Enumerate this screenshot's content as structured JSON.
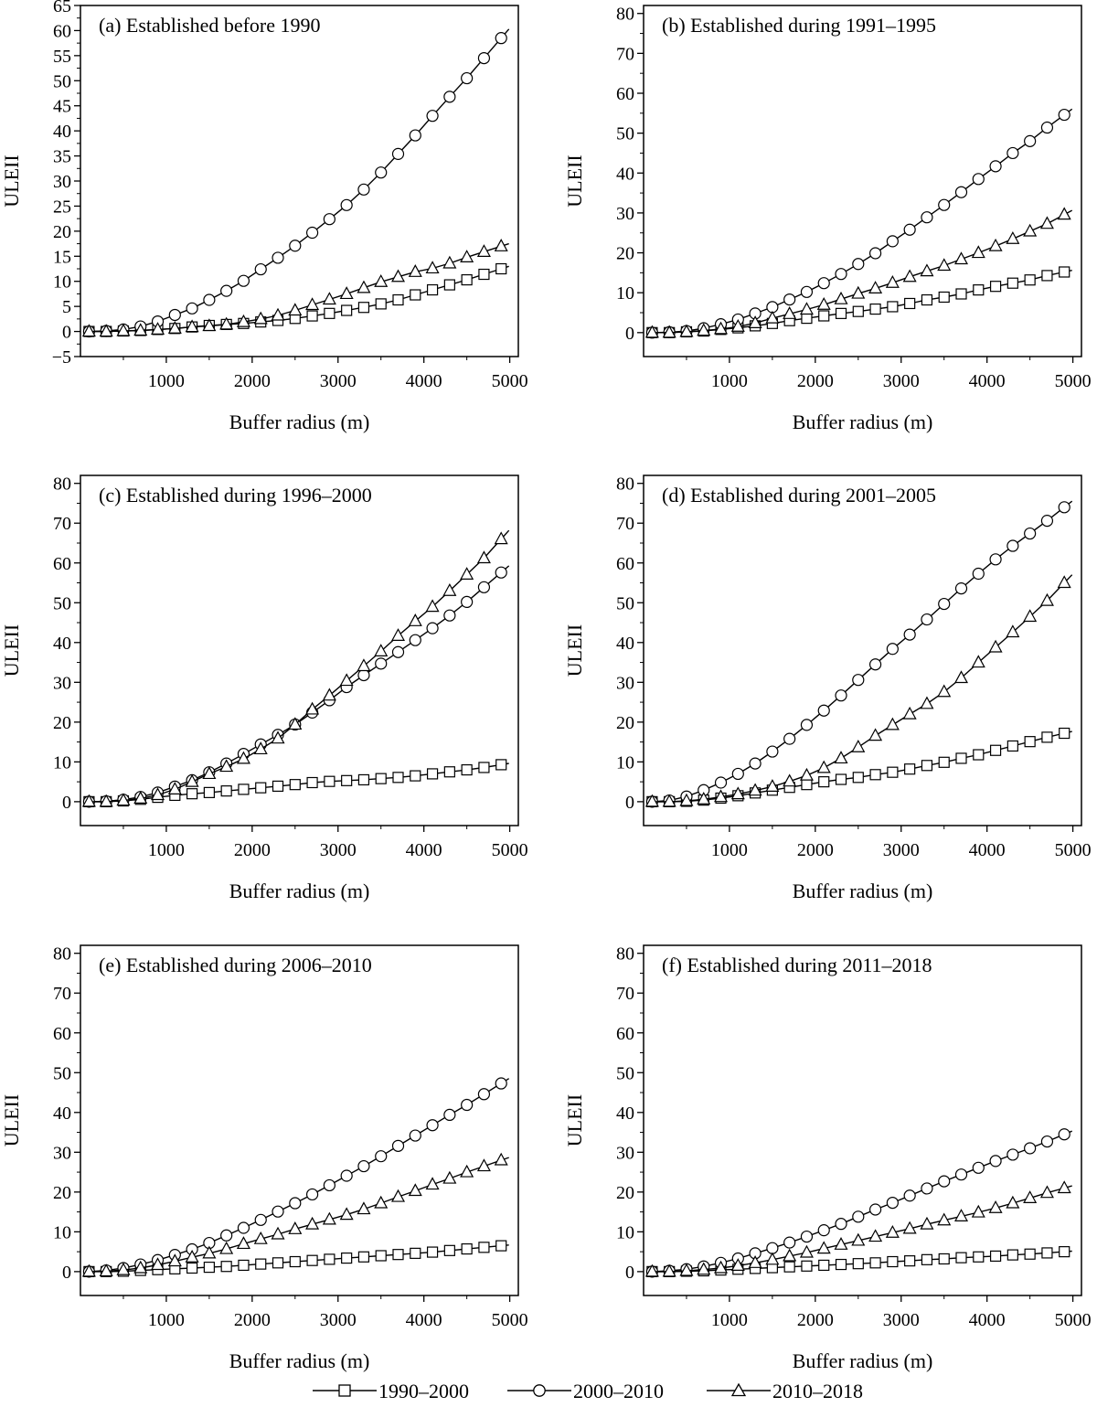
{
  "legend": {
    "items": [
      {
        "label": "1990–2000",
        "marker": "square"
      },
      {
        "label": "2000–2010",
        "marker": "circle"
      },
      {
        "label": "2010–2018",
        "marker": "triangle"
      }
    ]
  },
  "chart_data": [
    {
      "type": "line",
      "title": "(a) Established before 1990",
      "xlabel": "Buffer radius (m)",
      "ylabel": "ULEII",
      "xlim": [
        0,
        5100
      ],
      "ylim": [
        -5,
        65
      ],
      "yticks": [
        -5,
        0,
        5,
        10,
        15,
        20,
        25,
        30,
        35,
        40,
        45,
        50,
        55,
        60,
        65
      ],
      "xticks": [
        1000,
        2000,
        3000,
        4000,
        5000
      ],
      "ytick_labels": [
        "−5",
        "0",
        "5",
        "10",
        "15",
        "20",
        "25",
        "30",
        "35",
        "40",
        "45",
        "50",
        "55",
        "60",
        "65"
      ],
      "xtick_labels": [
        "1000",
        "2000",
        "3000",
        "4000",
        "5000"
      ],
      "x": [
        100,
        300,
        500,
        700,
        900,
        1100,
        1300,
        1500,
        1700,
        1900,
        2100,
        2300,
        2500,
        2700,
        2900,
        3100,
        3300,
        3500,
        3700,
        3900,
        4100,
        4300,
        4500,
        4700,
        4900
      ],
      "series": [
        {
          "name": "1990–2000",
          "marker": "square",
          "values": [
            0.0,
            0.0,
            0.1,
            0.2,
            0.4,
            0.6,
            0.9,
            1.2,
            1.4,
            1.6,
            1.9,
            2.2,
            2.6,
            3.1,
            3.6,
            4.2,
            4.8,
            5.5,
            6.3,
            7.3,
            8.3,
            9.3,
            10.3,
            11.4,
            12.5
          ]
        },
        {
          "name": "2000–2010",
          "marker": "circle",
          "values": [
            0.0,
            0.1,
            0.4,
            1.0,
            2.0,
            3.3,
            4.6,
            6.3,
            8.1,
            10.1,
            12.4,
            14.7,
            17.1,
            19.7,
            22.4,
            25.2,
            28.3,
            31.7,
            35.4,
            39.1,
            43.0,
            46.8,
            50.5,
            54.5,
            58.5
          ]
        },
        {
          "name": "2010–2018",
          "marker": "triangle",
          "values": [
            0.0,
            0.0,
            0.1,
            0.2,
            0.4,
            0.6,
            0.9,
            1.1,
            1.4,
            1.9,
            2.5,
            3.2,
            4.2,
            5.3,
            6.4,
            7.5,
            8.7,
            9.9,
            10.9,
            11.9,
            12.6,
            13.6,
            14.8,
            15.9,
            17.0
          ]
        }
      ]
    },
    {
      "type": "line",
      "title": "(b) Established during 1991–1995",
      "xlabel": "Buffer radius (m)",
      "ylabel": "ULEII",
      "xlim": [
        0,
        5100
      ],
      "ylim": [
        -6,
        82
      ],
      "yticks": [
        0,
        10,
        20,
        30,
        40,
        50,
        60,
        70,
        80
      ],
      "xticks": [
        1000,
        2000,
        3000,
        4000,
        5000
      ],
      "ytick_labels": [
        "0",
        "10",
        "20",
        "30",
        "40",
        "50",
        "60",
        "70",
        "80"
      ],
      "xtick_labels": [
        "1000",
        "2000",
        "3000",
        "4000",
        "5000"
      ],
      "x": [
        100,
        300,
        500,
        700,
        900,
        1100,
        1300,
        1500,
        1700,
        1900,
        2100,
        2300,
        2500,
        2700,
        2900,
        3100,
        3300,
        3500,
        3700,
        3900,
        4100,
        4300,
        4500,
        4700,
        4900
      ],
      "series": [
        {
          "name": "1990–2000",
          "marker": "square",
          "values": [
            0.0,
            0.0,
            0.2,
            0.4,
            0.8,
            1.2,
            1.7,
            2.3,
            3.0,
            3.6,
            4.2,
            4.8,
            5.3,
            5.9,
            6.5,
            7.3,
            8.2,
            8.9,
            9.7,
            10.7,
            11.6,
            12.4,
            13.2,
            14.3,
            15.2
          ]
        },
        {
          "name": "2000–2010",
          "marker": "circle",
          "values": [
            0.0,
            0.1,
            0.4,
            1.1,
            2.1,
            3.3,
            4.8,
            6.4,
            8.3,
            10.2,
            12.4,
            14.7,
            17.2,
            19.9,
            22.9,
            25.8,
            28.9,
            32.0,
            35.2,
            38.5,
            41.7,
            45.0,
            48.0,
            51.4,
            54.6
          ]
        },
        {
          "name": "2010–2018",
          "marker": "triangle",
          "values": [
            0.0,
            0.0,
            0.2,
            0.5,
            0.9,
            1.5,
            2.4,
            3.6,
            4.7,
            5.8,
            7.0,
            8.4,
            9.8,
            11.1,
            12.5,
            14.0,
            15.4,
            16.8,
            18.4,
            20.0,
            21.7,
            23.5,
            25.4,
            27.3,
            29.6
          ]
        }
      ]
    },
    {
      "type": "line",
      "title": "(c) Established during 1996–2000",
      "xlabel": "Buffer radius (m)",
      "ylabel": "ULEII",
      "xlim": [
        0,
        5100
      ],
      "ylim": [
        -6,
        82
      ],
      "yticks": [
        0,
        10,
        20,
        30,
        40,
        50,
        60,
        70,
        80
      ],
      "xticks": [
        1000,
        2000,
        3000,
        4000,
        5000
      ],
      "ytick_labels": [
        "0",
        "10",
        "20",
        "30",
        "40",
        "50",
        "60",
        "70",
        "80"
      ],
      "xtick_labels": [
        "1000",
        "2000",
        "3000",
        "4000",
        "5000"
      ],
      "x": [
        100,
        300,
        500,
        700,
        900,
        1100,
        1300,
        1500,
        1700,
        1900,
        2100,
        2300,
        2500,
        2700,
        2900,
        3100,
        3300,
        3500,
        3700,
        3900,
        4100,
        4300,
        4500,
        4700,
        4900
      ],
      "series": [
        {
          "name": "1990–2000",
          "marker": "square",
          "values": [
            0.0,
            0.0,
            0.2,
            0.6,
            1.1,
            1.6,
            2.0,
            2.3,
            2.7,
            3.1,
            3.5,
            3.9,
            4.3,
            4.8,
            5.1,
            5.3,
            5.5,
            5.8,
            6.1,
            6.5,
            7.0,
            7.5,
            8.0,
            8.6,
            9.3
          ]
        },
        {
          "name": "2000–2010",
          "marker": "circle",
          "values": [
            0.0,
            0.1,
            0.5,
            1.2,
            2.3,
            3.8,
            5.4,
            7.4,
            9.6,
            12.0,
            14.4,
            16.8,
            19.4,
            22.4,
            25.5,
            28.8,
            31.8,
            34.7,
            37.6,
            40.6,
            43.6,
            46.8,
            50.2,
            53.9,
            57.6
          ]
        },
        {
          "name": "2010–2018",
          "marker": "triangle",
          "values": [
            0.0,
            0.0,
            0.3,
            0.8,
            1.7,
            3.1,
            5.0,
            7.0,
            8.8,
            10.8,
            13.2,
            15.9,
            19.4,
            23.2,
            26.7,
            30.4,
            34.1,
            37.8,
            41.7,
            45.4,
            49.0,
            53.0,
            57.1,
            61.2,
            66.0
          ]
        }
      ]
    },
    {
      "type": "line",
      "title": "(d) Established during 2001–2005",
      "xlabel": "Buffer radius (m)",
      "ylabel": "ULEII",
      "xlim": [
        0,
        5100
      ],
      "ylim": [
        -6,
        82
      ],
      "yticks": [
        0,
        10,
        20,
        30,
        40,
        50,
        60,
        70,
        80
      ],
      "xticks": [
        1000,
        2000,
        3000,
        4000,
        5000
      ],
      "ytick_labels": [
        "0",
        "10",
        "20",
        "30",
        "40",
        "50",
        "60",
        "70",
        "80"
      ],
      "xtick_labels": [
        "1000",
        "2000",
        "3000",
        "4000",
        "5000"
      ],
      "x": [
        100,
        300,
        500,
        700,
        900,
        1100,
        1300,
        1500,
        1700,
        1900,
        2100,
        2300,
        2500,
        2700,
        2900,
        3100,
        3300,
        3500,
        3700,
        3900,
        4100,
        4300,
        4500,
        4700,
        4900
      ],
      "series": [
        {
          "name": "1990–2000",
          "marker": "square",
          "values": [
            0.0,
            0.0,
            0.1,
            0.4,
            0.9,
            1.5,
            2.2,
            2.9,
            3.6,
            4.3,
            5.0,
            5.6,
            6.1,
            6.8,
            7.4,
            8.2,
            9.1,
            9.9,
            10.9,
            11.8,
            12.9,
            14.0,
            15.1,
            16.2,
            17.2
          ]
        },
        {
          "name": "2000–2010",
          "marker": "circle",
          "values": [
            0.0,
            0.3,
            1.3,
            2.9,
            4.8,
            7.0,
            9.6,
            12.6,
            15.8,
            19.3,
            22.9,
            26.7,
            30.6,
            34.5,
            38.4,
            42.0,
            45.8,
            49.7,
            53.6,
            57.3,
            60.9,
            64.3,
            67.4,
            70.6,
            74.0
          ]
        },
        {
          "name": "2010–2018",
          "marker": "triangle",
          "values": [
            0.0,
            0.0,
            0.2,
            0.6,
            1.2,
            1.9,
            2.8,
            3.8,
            5.1,
            6.6,
            8.5,
            10.9,
            13.7,
            16.6,
            19.3,
            22.0,
            24.6,
            27.6,
            31.1,
            35.0,
            38.8,
            42.6,
            46.5,
            50.5,
            55.0
          ]
        }
      ]
    },
    {
      "type": "line",
      "title": "(e) Established during 2006–2010",
      "xlabel": "Buffer radius (m)",
      "ylabel": "ULEII",
      "xlim": [
        0,
        5100
      ],
      "ylim": [
        -6,
        82
      ],
      "yticks": [
        0,
        10,
        20,
        30,
        40,
        50,
        60,
        70,
        80
      ],
      "xticks": [
        1000,
        2000,
        3000,
        4000,
        5000
      ],
      "ytick_labels": [
        "0",
        "10",
        "20",
        "30",
        "40",
        "50",
        "60",
        "70",
        "80"
      ],
      "xtick_labels": [
        "1000",
        "2000",
        "3000",
        "4000",
        "5000"
      ],
      "x": [
        100,
        300,
        500,
        700,
        900,
        1100,
        1300,
        1500,
        1700,
        1900,
        2100,
        2300,
        2500,
        2700,
        2900,
        3100,
        3300,
        3500,
        3700,
        3900,
        4100,
        4300,
        4500,
        4700,
        4900
      ],
      "series": [
        {
          "name": "1990–2000",
          "marker": "square",
          "values": [
            0.0,
            0.0,
            0.1,
            0.3,
            0.5,
            0.7,
            0.9,
            1.1,
            1.3,
            1.6,
            1.9,
            2.2,
            2.5,
            2.8,
            3.1,
            3.4,
            3.7,
            4.0,
            4.3,
            4.6,
            4.9,
            5.3,
            5.7,
            6.1,
            6.5
          ]
        },
        {
          "name": "2000–2010",
          "marker": "circle",
          "values": [
            0.0,
            0.3,
            0.9,
            1.8,
            2.9,
            4.2,
            5.6,
            7.2,
            9.1,
            11.0,
            13.0,
            15.1,
            17.2,
            19.4,
            21.7,
            24.1,
            26.5,
            29.0,
            31.6,
            34.2,
            36.8,
            39.4,
            41.9,
            44.6,
            47.3
          ]
        },
        {
          "name": "2010–2018",
          "marker": "triangle",
          "values": [
            0.0,
            0.1,
            0.4,
            0.9,
            1.7,
            2.6,
            3.6,
            4.6,
            5.7,
            7.0,
            8.2,
            9.4,
            10.7,
            11.9,
            13.1,
            14.3,
            15.7,
            17.2,
            18.8,
            20.3,
            21.9,
            23.4,
            25.0,
            26.5,
            28.0
          ]
        }
      ]
    },
    {
      "type": "line",
      "title": "(f) Established during 2011–2018",
      "xlabel": "Buffer radius (m)",
      "ylabel": "ULEII",
      "xlim": [
        0,
        5100
      ],
      "ylim": [
        -6,
        82
      ],
      "yticks": [
        0,
        10,
        20,
        30,
        40,
        50,
        60,
        70,
        80
      ],
      "xticks": [
        1000,
        2000,
        3000,
        4000,
        5000
      ],
      "ytick_labels": [
        "0",
        "10",
        "20",
        "30",
        "40",
        "50",
        "60",
        "70",
        "80"
      ],
      "xtick_labels": [
        "1000",
        "2000",
        "3000",
        "4000",
        "5000"
      ],
      "x": [
        100,
        300,
        500,
        700,
        900,
        1100,
        1300,
        1500,
        1700,
        1900,
        2100,
        2300,
        2500,
        2700,
        2900,
        3100,
        3300,
        3500,
        3700,
        3900,
        4100,
        4300,
        4500,
        4700,
        4900
      ],
      "series": [
        {
          "name": "1990–2000",
          "marker": "square",
          "values": [
            0.0,
            0.0,
            0.1,
            0.2,
            0.4,
            0.6,
            0.8,
            1.0,
            1.2,
            1.4,
            1.6,
            1.8,
            2.0,
            2.2,
            2.5,
            2.7,
            3.0,
            3.2,
            3.5,
            3.7,
            3.9,
            4.2,
            4.4,
            4.7,
            5.0
          ]
        },
        {
          "name": "2000–2010",
          "marker": "circle",
          "values": [
            0.0,
            0.2,
            0.6,
            1.3,
            2.2,
            3.3,
            4.6,
            5.9,
            7.3,
            8.8,
            10.4,
            12.0,
            13.8,
            15.6,
            17.3,
            19.1,
            20.9,
            22.7,
            24.4,
            26.1,
            27.8,
            29.4,
            31.0,
            32.7,
            34.5
          ]
        },
        {
          "name": "2010–2018",
          "marker": "triangle",
          "values": [
            0.0,
            0.0,
            0.2,
            0.5,
            0.9,
            1.5,
            2.2,
            3.0,
            3.9,
            4.8,
            5.8,
            6.8,
            7.8,
            8.8,
            9.8,
            10.8,
            11.9,
            12.9,
            13.9,
            14.9,
            16.0,
            17.2,
            18.5,
            19.8,
            21.0
          ]
        }
      ]
    }
  ]
}
